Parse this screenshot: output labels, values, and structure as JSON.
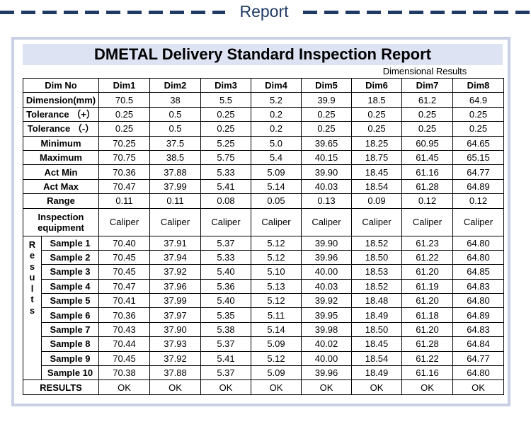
{
  "header": {
    "title": "Report"
  },
  "report": {
    "title": "DMETAL Delivery  Standard Inspection Report",
    "subtitle": "Dimensional Results",
    "dim_no_label": "Dim No",
    "columns": [
      "Dim1",
      "Dim2",
      "Dim3",
      "Dim4",
      "Dim5",
      "Dim6",
      "Dim7",
      "Dim8"
    ],
    "spec_rows": [
      {
        "label": "Dimension(mm)",
        "values": [
          "70.5",
          "38",
          "5.5",
          "5.2",
          "39.9",
          "18.5",
          "61.2",
          "64.9"
        ]
      },
      {
        "label": "Tolerance （+）",
        "values": [
          "0.25",
          "0.5",
          "0.25",
          "0.2",
          "0.25",
          "0.25",
          "0.25",
          "0.25"
        ]
      },
      {
        "label": "Tolerance （-）",
        "values": [
          "0.25",
          "0.5",
          "0.25",
          "0.2",
          "0.25",
          "0.25",
          "0.25",
          "0.25"
        ]
      },
      {
        "label": "Minimum",
        "values": [
          "70.25",
          "37.5",
          "5.25",
          "5.0",
          "39.65",
          "18.25",
          "60.95",
          "64.65"
        ]
      },
      {
        "label": "Maximum",
        "values": [
          "70.75",
          "38.5",
          "5.75",
          "5.4",
          "40.15",
          "18.75",
          "61.45",
          "65.15"
        ]
      },
      {
        "label": "Act Min",
        "values": [
          "70.36",
          "37.88",
          "5.33",
          "5.09",
          "39.90",
          "18.45",
          "61.16",
          "64.77"
        ]
      },
      {
        "label": "Act Max",
        "values": [
          "70.47",
          "37.99",
          "5.41",
          "5.14",
          "40.03",
          "18.54",
          "61.28",
          "64.89"
        ]
      },
      {
        "label": "Range",
        "values": [
          "0.11",
          "0.11",
          "0.08",
          "0.05",
          "0.13",
          "0.09",
          "0.12",
          "0.12"
        ]
      }
    ],
    "equipment": {
      "label_line1": "Inspection",
      "label_line2": "equipment",
      "values": [
        "Caliper",
        "Caliper",
        "Caliper",
        "Caliper",
        "Caliper",
        "Caliper",
        "Caliper",
        "Caliper"
      ]
    },
    "results_side_word": [
      "R",
      "e",
      "s",
      "u",
      "l",
      "t",
      "s"
    ],
    "samples": [
      {
        "label": "Sample 1",
        "values": [
          "70.40",
          "37.91",
          "5.37",
          "5.12",
          "39.90",
          "18.52",
          "61.23",
          "64.80"
        ]
      },
      {
        "label": "Sample 2",
        "values": [
          "70.45",
          "37.94",
          "5.33",
          "5.12",
          "39.96",
          "18.50",
          "61.22",
          "64.80"
        ]
      },
      {
        "label": "Sample 3",
        "values": [
          "70.45",
          "37.92",
          "5.40",
          "5.10",
          "40.00",
          "18.53",
          "61.20",
          "64.85"
        ]
      },
      {
        "label": "Sample 4",
        "values": [
          "70.47",
          "37.96",
          "5.36",
          "5.13",
          "40.03",
          "18.52",
          "61.19",
          "64.83"
        ]
      },
      {
        "label": "Sample 5",
        "values": [
          "70.41",
          "37.99",
          "5.40",
          "5.12",
          "39.92",
          "18.48",
          "61.20",
          "64.80"
        ]
      },
      {
        "label": "Sample 6",
        "values": [
          "70.36",
          "37.97",
          "5.35",
          "5.11",
          "39.95",
          "18.49",
          "61.18",
          "64.89"
        ]
      },
      {
        "label": "Sample 7",
        "values": [
          "70.43",
          "37.90",
          "5.38",
          "5.14",
          "39.98",
          "18.50",
          "61.20",
          "64.83"
        ]
      },
      {
        "label": "Sample 8",
        "values": [
          "70.44",
          "37.93",
          "5.37",
          "5.09",
          "40.02",
          "18.45",
          "61.28",
          "64.84"
        ]
      },
      {
        "label": "Sample 9",
        "values": [
          "70.45",
          "37.92",
          "5.41",
          "5.12",
          "40.00",
          "18.54",
          "61.22",
          "64.77"
        ]
      },
      {
        "label": "Sample 10",
        "values": [
          "70.38",
          "37.88",
          "5.37",
          "5.09",
          "39.96",
          "18.49",
          "61.16",
          "64.80"
        ]
      }
    ],
    "results_row": {
      "label": "RESULTS",
      "values": [
        "OK",
        "OK",
        "OK",
        "OK",
        "OK",
        "OK",
        "OK",
        "OK"
      ]
    }
  }
}
